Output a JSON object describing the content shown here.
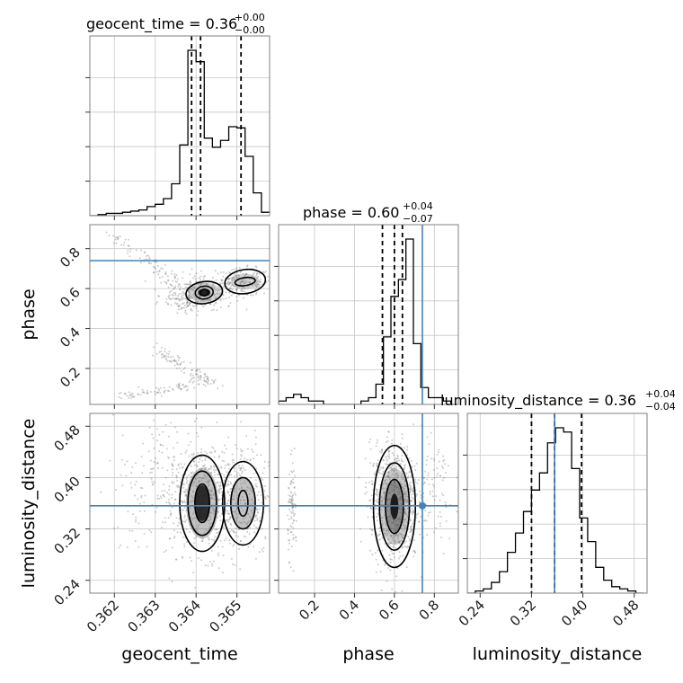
{
  "chart_data": {
    "type": "corner",
    "parameters": [
      "geocent_time",
      "phase",
      "luminosity_distance"
    ],
    "truths": {
      "phase": 0.74,
      "luminosity_distance": 0.356
    },
    "truth_color": "#4682b4",
    "titles": [
      {
        "param": "geocent_time",
        "label": "geocent_time = 0.36",
        "upper": "+0.00",
        "lower": "−0.00"
      },
      {
        "param": "phase",
        "label": "phase = 0.60",
        "upper": "+0.04",
        "lower": "−0.07"
      },
      {
        "param": "luminosity_distance",
        "label": "luminosity_distance = 0.36",
        "upper": "+0.04",
        "lower": "−0.04"
      }
    ],
    "axes": {
      "geocent_time": {
        "range": [
          0.3614,
          0.3658
        ],
        "ticks": [
          "0.362",
          "0.363",
          "0.364",
          "0.365"
        ],
        "tick_values": [
          0.362,
          0.363,
          0.364,
          0.365
        ],
        "label": "geocent_time"
      },
      "phase": {
        "range": [
          0.02,
          0.92
        ],
        "ticks": [
          "0.2",
          "0.4",
          "0.6",
          "0.8"
        ],
        "tick_values": [
          0.2,
          0.4,
          0.6,
          0.8
        ],
        "label": "phase"
      },
      "luminosity_distance": {
        "range": [
          0.22,
          0.5
        ],
        "ticks": [
          "0.24",
          "0.32",
          "0.40",
          "0.48"
        ],
        "tick_values": [
          0.24,
          0.32,
          0.4,
          0.48
        ],
        "label": "luminosity_distance"
      }
    },
    "histograms": {
      "geocent_time": {
        "edges": [
          0.3614,
          0.3616,
          0.3618,
          0.362,
          0.3622,
          0.3624,
          0.3626,
          0.3628,
          0.363,
          0.3632,
          0.3634,
          0.3636,
          0.3638,
          0.364,
          0.3642,
          0.3644,
          0.3646,
          0.3648,
          0.365,
          0.3652,
          0.3654,
          0.3656,
          0.3658
        ],
        "counts": [
          0,
          1,
          2,
          2,
          3,
          4,
          5,
          8,
          10,
          15,
          28,
          62,
          145,
          135,
          68,
          60,
          66,
          78,
          77,
          52,
          20,
          3
        ]
      },
      "phase": {
        "edges": [
          0.02,
          0.0575,
          0.095,
          0.1325,
          0.17,
          0.2075,
          0.245,
          0.2825,
          0.32,
          0.3575,
          0.395,
          0.4325,
          0.47,
          0.5075,
          0.545,
          0.5825,
          0.62,
          0.6575,
          0.695,
          0.7325,
          0.77,
          0.8075,
          0.845,
          0.8825,
          0.92
        ],
        "counts": [
          1,
          2,
          3,
          2,
          1,
          1,
          0,
          0,
          0,
          0,
          0,
          1,
          2,
          6,
          20,
          32,
          37,
          49,
          18,
          5,
          2,
          2,
          1,
          0
        ]
      },
      "luminosity_distance": {
        "edges": [
          0.22,
          0.2325,
          0.245,
          0.2575,
          0.27,
          0.2825,
          0.295,
          0.3075,
          0.32,
          0.3325,
          0.345,
          0.3575,
          0.37,
          0.3825,
          0.395,
          0.4075,
          0.42,
          0.4325,
          0.445,
          0.4575,
          0.47,
          0.4825,
          0.495
        ],
        "counts": [
          0,
          1,
          2,
          5,
          10,
          19,
          28,
          38,
          48,
          56,
          70,
          77,
          75,
          58,
          35,
          24,
          12,
          6,
          3,
          2,
          1,
          0
        ]
      }
    },
    "quantiles": {
      "geocent_time": [
        0.36389,
        0.36411,
        0.3651
      ],
      "phase": [
        0.54,
        0.6,
        0.64
      ],
      "luminosity_distance": [
        0.32,
        0.356,
        0.398
      ]
    },
    "pairs": [
      {
        "x": "geocent_time",
        "y": "phase"
      },
      {
        "x": "geocent_time",
        "y": "luminosity_distance"
      },
      {
        "x": "phase",
        "y": "luminosity_distance"
      }
    ],
    "grid": true
  }
}
